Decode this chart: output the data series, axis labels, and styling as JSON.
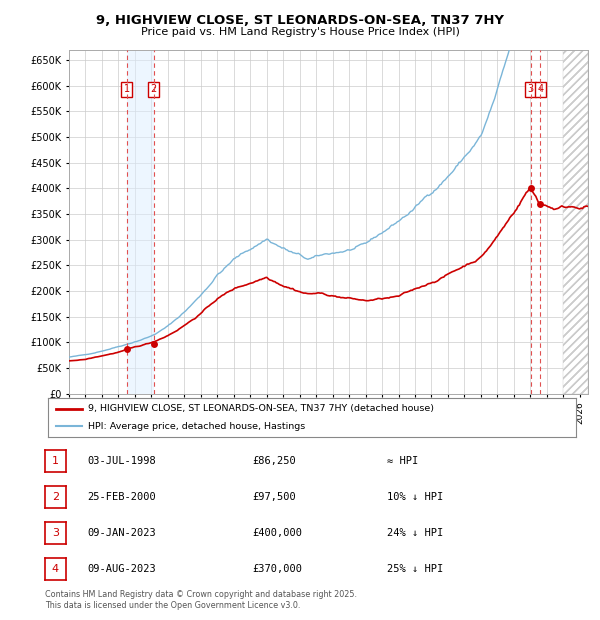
{
  "title": "9, HIGHVIEW CLOSE, ST LEONARDS-ON-SEA, TN37 7HY",
  "subtitle": "Price paid vs. HM Land Registry's House Price Index (HPI)",
  "ylim": [
    0,
    670000
  ],
  "yticks": [
    0,
    50000,
    100000,
    150000,
    200000,
    250000,
    300000,
    350000,
    400000,
    450000,
    500000,
    550000,
    600000,
    650000
  ],
  "xlim_start": 1995.0,
  "xlim_end": 2026.5,
  "sale_dates": [
    1998.5,
    2000.15,
    2023.02,
    2023.6
  ],
  "sale_prices": [
    86250,
    97500,
    400000,
    370000
  ],
  "sale_labels": [
    "1",
    "2",
    "3",
    "4"
  ],
  "vline_dates": [
    1998.5,
    2000.15,
    2023.02,
    2023.6
  ],
  "shade_x1": 1998.5,
  "shade_x2": 2000.15,
  "hatch_start": 2025.0,
  "legend_line1": "9, HIGHVIEW CLOSE, ST LEONARDS-ON-SEA, TN37 7HY (detached house)",
  "legend_line2": "HPI: Average price, detached house, Hastings",
  "table_data": [
    [
      "1",
      "03-JUL-1998",
      "£86,250",
      "≈ HPI"
    ],
    [
      "2",
      "25-FEB-2000",
      "£97,500",
      "10% ↓ HPI"
    ],
    [
      "3",
      "09-JAN-2023",
      "£400,000",
      "24% ↓ HPI"
    ],
    [
      "4",
      "09-AUG-2023",
      "£370,000",
      "25% ↓ HPI"
    ]
  ],
  "footer": "Contains HM Land Registry data © Crown copyright and database right 2025.\nThis data is licensed under the Open Government Licence v3.0.",
  "hpi_color": "#7ab5d8",
  "price_color": "#cc0000",
  "grid_color": "#cccccc",
  "vline_color": "#e05050",
  "shade_color": "#ddeeff",
  "label_box_color": "#cc0000",
  "background_color": "#ffffff"
}
